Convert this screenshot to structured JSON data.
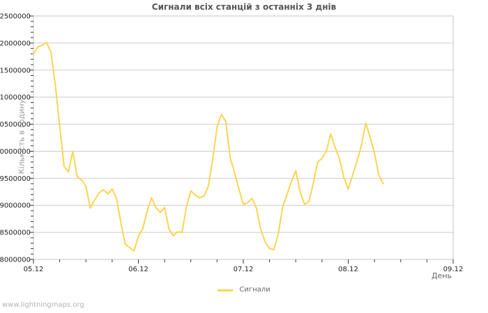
{
  "title": "Сигнали всіх станцій з останніх 3 днів",
  "watermark": "www.lightningmaps.org",
  "legend": {
    "label": "Сигнали",
    "color": "#fdd44f"
  },
  "colors": {
    "line": "#fdd44f",
    "grid": "#cccccc",
    "border": "#c6c6c6",
    "tick": "#333333",
    "tick_text": "#222222",
    "title_text": "#555555",
    "axis_title_text": "#666666",
    "y_title_text": "#9a9a9a",
    "watermark_text": "#b3b3b3"
  },
  "chart_data": {
    "type": "line",
    "title": "Сигнали всіх станцій з останніх 3 днів",
    "xlabel": "День",
    "ylabel": "Кількість в годину",
    "legend_position": "bottom-center",
    "grid": "horizontal-only",
    "x_axis": {
      "tick_labels": [
        "05.12",
        "06.12",
        "07.12",
        "08.12",
        "09.12"
      ],
      "minor_ticks_between_days": 3,
      "minor_interval_days": 0.25
    },
    "y_axis": {
      "min": 8000000,
      "max": 12500000,
      "major_step": 500000,
      "minor_step": 100000,
      "tick_labels": [
        "8000000",
        "8500000",
        "9000000",
        "9500000",
        "10000000",
        "10500000",
        "11000000",
        "11500000",
        "12000000",
        "12500000"
      ]
    },
    "series": [
      {
        "name": "Сигнали",
        "color": "#fdd44f",
        "start_label": "05.12",
        "interval_hours": 1,
        "values": [
          11800000,
          11930000,
          11960000,
          12010000,
          11830000,
          11220000,
          10470000,
          9720000,
          9620000,
          10000000,
          9530000,
          9470000,
          9350000,
          8950000,
          9100000,
          9230000,
          9290000,
          9210000,
          9300000,
          9130000,
          8680000,
          8280000,
          8220000,
          8160000,
          8430000,
          8570000,
          8890000,
          9140000,
          8960000,
          8870000,
          8960000,
          8560000,
          8440000,
          8510000,
          8500000,
          8980000,
          9270000,
          9190000,
          9140000,
          9170000,
          9350000,
          9850000,
          10450000,
          10680000,
          10550000,
          9880000,
          9600000,
          9300000,
          9020000,
          9050000,
          9130000,
          8950000,
          8550000,
          8320000,
          8200000,
          8180000,
          8480000,
          8970000,
          9200000,
          9440000,
          9640000,
          9250000,
          9020000,
          9070000,
          9400000,
          9800000,
          9870000,
          10000000,
          10320000,
          10070000,
          9860000,
          9520000,
          9300000,
          9560000,
          9810000,
          10100000,
          10520000,
          10260000,
          9970000,
          9560000,
          9400000
        ]
      }
    ]
  }
}
